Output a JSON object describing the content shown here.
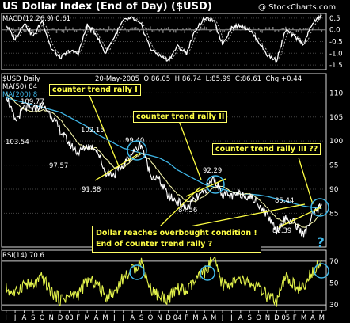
{
  "title": "US Dollar Index (End of Day) ($USD)",
  "copyright": "@ StockCharts.com",
  "macd_panel": {
    "label": "MACD(12,26,9)",
    "value": "0.61",
    "ticks": [
      "0.5",
      "0.0",
      "-0.5",
      "-1.0",
      "-1.5"
    ]
  },
  "price_panel": {
    "label": "$USD Daily",
    "ma50_label": "MA(50) 84",
    "ma200_label": "MA(200) 8",
    "ohlc": {
      "date": "20-May-2005",
      "open": "O:86.05",
      "high": "H:86.74",
      "low": "L:85.99",
      "close": "C:86.61",
      "change": "Chg:+0.44"
    },
    "ticks": [
      "110",
      "105",
      "100",
      "95",
      "90",
      "85"
    ],
    "price_labels": [
      "109.77",
      "103.54",
      "102.15",
      "97.57",
      "99.40",
      "91.88",
      "92.29",
      "84.56",
      "85.44",
      "80.39"
    ]
  },
  "rsi_panel": {
    "label": "RSI(14)",
    "value": "70.6",
    "ticks": [
      "70",
      "50",
      "30"
    ]
  },
  "annotations": {
    "rally1": "counter trend rally I",
    "rally2": "counter trend rally II",
    "rally3": "counter trend rally III ??",
    "note_line1": "Dollar reaches overbought condition !",
    "note_line2": "End of counter trend rally ?",
    "question_mark": "?"
  },
  "x_axis": {
    "labels": [
      "J",
      "J",
      "A",
      "S",
      "O",
      "N",
      "D",
      "03",
      "F",
      "M",
      "A",
      "M",
      "J",
      "J",
      "A",
      "S",
      "O",
      "N",
      "D",
      "04",
      "F",
      "M",
      "A",
      "M",
      "J",
      "J",
      "A",
      "S",
      "O",
      "N",
      "D",
      "05",
      "F",
      "M",
      "A",
      "M"
    ]
  },
  "colors": {
    "background": "#000000",
    "price": "#ffffff",
    "ma50": "#f0f0a8",
    "ma200": "#3fb7e8",
    "rsi": "#e2f24a",
    "annotation": "#ffff44",
    "highlight": "#3fb7e8"
  },
  "chart_data": {
    "type": "line",
    "price": {
      "x": [
        "Jun-2002",
        "Jul-2002",
        "Aug-2002",
        "Sep-2002",
        "Oct-2002",
        "Nov-2002",
        "Dec-2002",
        "Jan-2003",
        "Feb-2003",
        "Mar-2003",
        "Apr-2003",
        "May-2003",
        "Jun-2003",
        "Jul-2003",
        "Aug-2003",
        "Sep-2003",
        "Oct-2003",
        "Nov-2003",
        "Dec-2003",
        "Jan-2004",
        "Feb-2004",
        "Mar-2004",
        "Apr-2004",
        "May-2004",
        "Jun-2004",
        "Jul-2004",
        "Aug-2004",
        "Sep-2004",
        "Oct-2004",
        "Nov-2004",
        "Dec-2004",
        "Jan-2005",
        "Feb-2005",
        "Mar-2005",
        "Apr-2005",
        "May-2005"
      ],
      "series": [
        {
          "name": "$USD Daily",
          "values": [
            109.77,
            104,
            107,
            106.5,
            107.5,
            105.5,
            102.15,
            99.5,
            97.57,
            99,
            98.5,
            93.5,
            93,
            95,
            97.5,
            99.4,
            93,
            91.88,
            88.5,
            87.5,
            86,
            88,
            89.5,
            92.29,
            89,
            88.5,
            89,
            88.5,
            87,
            84.56,
            81.5,
            84,
            83,
            80.39,
            84.5,
            86.61
          ]
        },
        {
          "name": "MA(50)",
          "values": [
            110,
            108,
            106.5,
            106,
            106.5,
            106,
            104.5,
            102,
            99.5,
            98.5,
            98.5,
            96.5,
            94.5,
            94.5,
            96,
            97.5,
            96,
            93.5,
            91,
            89,
            87.5,
            87.5,
            88.5,
            90.5,
            90.5,
            89.5,
            89,
            89,
            88,
            86,
            84,
            83,
            83,
            82,
            83,
            85
          ]
        },
        {
          "name": "MA(200)",
          "values": [
            109,
            108.5,
            108,
            107.5,
            107,
            106.5,
            106,
            105,
            104,
            103,
            101.5,
            100.5,
            99.5,
            98.5,
            98,
            97.5,
            97,
            96.5,
            95.5,
            94,
            93,
            92,
            91,
            90.5,
            90,
            89.5,
            89,
            89,
            88.8,
            88.5,
            88,
            87.5,
            87,
            86.5,
            86.2,
            86
          ]
        }
      ],
      "ylim": [
        78,
        114
      ],
      "ticks": [
        110,
        105,
        100,
        95,
        90,
        85
      ]
    },
    "macd": {
      "values": [
        0.2,
        -0.4,
        0.3,
        -0.3,
        0.4,
        -0.8,
        -1.2,
        -0.9,
        -1.0,
        0.2,
        -0.2,
        -1.0,
        -0.3,
        0.4,
        0.5,
        0.2,
        -0.8,
        -1.1,
        -1.3,
        -0.7,
        -1.0,
        0.0,
        0.5,
        0.4,
        -0.6,
        0.1,
        0.2,
        0.0,
        -0.5,
        -1.1,
        -1.3,
        0.0,
        -0.3,
        -0.6,
        0.3,
        0.61
      ],
      "ylim": [
        -1.7,
        0.7
      ],
      "ticks": [
        0.5,
        0.0,
        -0.5,
        -1.0,
        -1.5
      ]
    },
    "rsi": {
      "values": [
        45,
        40,
        50,
        47,
        55,
        42,
        35,
        38,
        40,
        52,
        50,
        38,
        42,
        55,
        62,
        70,
        45,
        38,
        36,
        45,
        42,
        52,
        60,
        72,
        48,
        50,
        52,
        50,
        45,
        38,
        32,
        55,
        48,
        44,
        62,
        70.6
      ],
      "ylim": [
        25,
        80
      ],
      "ticks": [
        70,
        50,
        30
      ]
    }
  }
}
